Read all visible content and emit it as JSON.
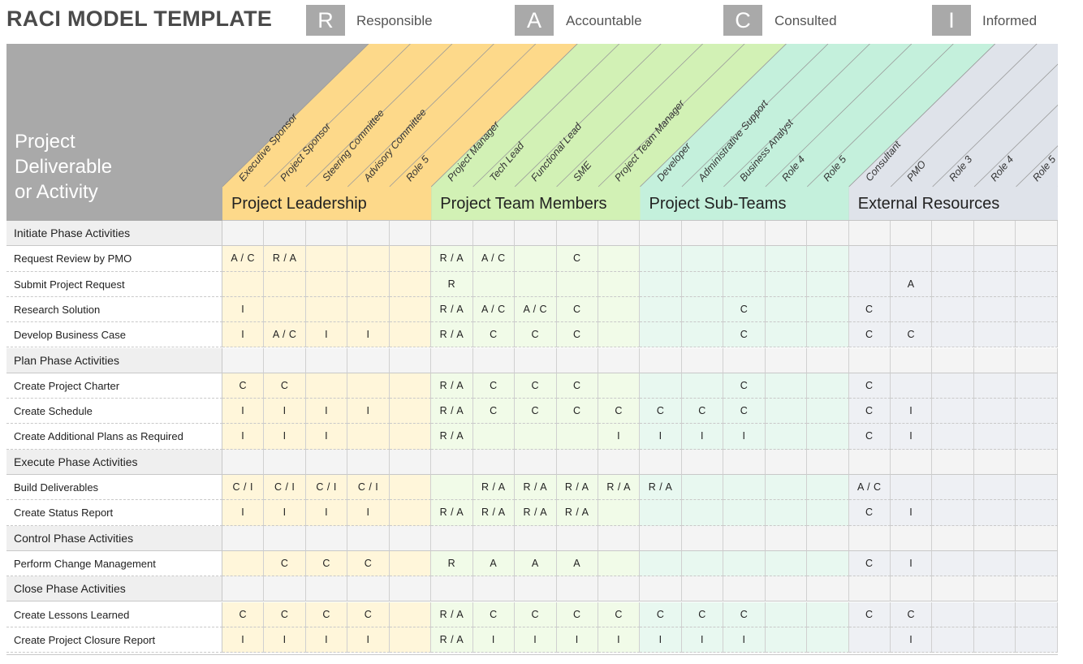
{
  "title": "RACI MODEL TEMPLATE",
  "legend": [
    {
      "letter": "R",
      "label": "Responsible"
    },
    {
      "letter": "A",
      "label": "Accountable"
    },
    {
      "letter": "C",
      "label": "Consulted"
    },
    {
      "letter": "I",
      "label": "Informed"
    }
  ],
  "header": {
    "label_lines": [
      "Project",
      "Deliverable",
      "or Activity"
    ],
    "groups": [
      {
        "name": "Project Leadership",
        "color": "#fdd98a",
        "light": "#fff6da",
        "roles": [
          "Executive Sponsor",
          "Project Sponsor",
          "Steering Committee",
          "Advisory Committee",
          "Role 5"
        ]
      },
      {
        "name": "Project Team Members",
        "color": "#d2f1b5",
        "light": "#f1fbe8",
        "roles": [
          "Project Manager",
          "Tech Lead",
          "Functional Lead",
          "SME",
          "Project Team Manager"
        ]
      },
      {
        "name": "Project Sub-Teams",
        "color": "#c4f0dc",
        "light": "#e8f8f0",
        "roles": [
          "Developer",
          "Administrative Support",
          "Business Analyst",
          "Role 4",
          "Role 5"
        ]
      },
      {
        "name": "External Resources",
        "color": "#dfe3ea",
        "light": "#eef0f4",
        "roles": [
          "Consultant",
          "PMO",
          "Role 3",
          "Role 4",
          "Role 5"
        ]
      }
    ]
  },
  "rows": [
    {
      "type": "phase",
      "label": "Initiate Phase Activities",
      "cells": [
        "",
        "",
        "",
        "",
        "",
        "",
        "",
        "",
        "",
        "",
        "",
        "",
        "",
        "",
        "",
        "",
        "",
        "",
        "",
        ""
      ]
    },
    {
      "type": "activity",
      "label": "Request Review by PMO",
      "cells": [
        "A / C",
        "R / A",
        "",
        "",
        "",
        "R / A",
        "A / C",
        "",
        "C",
        "",
        "",
        "",
        "",
        "",
        "",
        "",
        "",
        "",
        "",
        ""
      ]
    },
    {
      "type": "activity",
      "label": "Submit Project Request",
      "cells": [
        "",
        "",
        "",
        "",
        "",
        "R",
        "",
        "",
        "",
        "",
        "",
        "",
        "",
        "",
        "",
        "",
        "A",
        "",
        "",
        ""
      ]
    },
    {
      "type": "activity",
      "label": "Research Solution",
      "cells": [
        "I",
        "",
        "",
        "",
        "",
        "R / A",
        "A / C",
        "A / C",
        "C",
        "",
        "",
        "",
        "C",
        "",
        "",
        "C",
        "",
        "",
        "",
        ""
      ]
    },
    {
      "type": "activity",
      "label": "Develop Business Case",
      "cells": [
        "I",
        "A / C",
        "I",
        "I",
        "",
        "R / A",
        "C",
        "C",
        "C",
        "",
        "",
        "",
        "C",
        "",
        "",
        "C",
        "C",
        "",
        "",
        ""
      ]
    },
    {
      "type": "phase",
      "label": "Plan Phase Activities",
      "cells": [
        "",
        "",
        "",
        "",
        "",
        "",
        "",
        "",
        "",
        "",
        "",
        "",
        "",
        "",
        "",
        "",
        "",
        "",
        "",
        ""
      ]
    },
    {
      "type": "activity",
      "label": "Create Project Charter",
      "cells": [
        "C",
        "C",
        "",
        "",
        "",
        "R / A",
        "C",
        "C",
        "C",
        "",
        "",
        "",
        "C",
        "",
        "",
        "C",
        "",
        "",
        "",
        ""
      ]
    },
    {
      "type": "activity",
      "label": "Create Schedule",
      "cells": [
        "I",
        "I",
        "I",
        "I",
        "",
        "R / A",
        "C",
        "C",
        "C",
        "C",
        "C",
        "C",
        "C",
        "",
        "",
        "C",
        "I",
        "",
        "",
        ""
      ]
    },
    {
      "type": "activity",
      "label": "Create Additional Plans as Required",
      "cells": [
        "I",
        "I",
        "I",
        "",
        "",
        "R / A",
        "",
        "",
        "",
        "I",
        "I",
        "I",
        "I",
        "",
        "",
        "C",
        "I",
        "",
        "",
        ""
      ]
    },
    {
      "type": "phase",
      "label": "Execute Phase Activities",
      "cells": [
        "",
        "",
        "",
        "",
        "",
        "",
        "",
        "",
        "",
        "",
        "",
        "",
        "",
        "",
        "",
        "",
        "",
        "",
        "",
        ""
      ]
    },
    {
      "type": "activity",
      "label": "Build Deliverables",
      "cells": [
        "C / I",
        "C / I",
        "C / I",
        "C / I",
        "",
        "",
        "R / A",
        "R / A",
        "R / A",
        "R / A",
        "R / A",
        "",
        "",
        "",
        "",
        "A / C",
        "",
        "",
        "",
        ""
      ]
    },
    {
      "type": "activity",
      "label": "Create Status Report",
      "cells": [
        "I",
        "I",
        "I",
        "I",
        "",
        "R / A",
        "R / A",
        "R / A",
        "R / A",
        "",
        "",
        "",
        "",
        "",
        "",
        "C",
        "I",
        "",
        "",
        ""
      ]
    },
    {
      "type": "phase",
      "label": "Control Phase Activities",
      "cells": [
        "",
        "",
        "",
        "",
        "",
        "",
        "",
        "",
        "",
        "",
        "",
        "",
        "",
        "",
        "",
        "",
        "",
        "",
        "",
        ""
      ]
    },
    {
      "type": "activity",
      "label": "Perform Change Management",
      "cells": [
        "",
        "C",
        "C",
        "C",
        "",
        "R",
        "A",
        "A",
        "A",
        "",
        "",
        "",
        "",
        "",
        "",
        "C",
        "I",
        "",
        "",
        ""
      ]
    },
    {
      "type": "phase",
      "label": "Close Phase Activities",
      "cells": [
        "",
        "",
        "",
        "",
        "",
        "",
        "",
        "",
        "",
        "",
        "",
        "",
        "",
        "",
        "",
        "",
        "",
        "",
        "",
        ""
      ]
    },
    {
      "type": "activity",
      "label": "Create Lessons Learned",
      "cells": [
        "C",
        "C",
        "C",
        "C",
        "",
        "R / A",
        "C",
        "C",
        "C",
        "C",
        "C",
        "C",
        "C",
        "",
        "",
        "C",
        "C",
        "",
        "",
        ""
      ]
    },
    {
      "type": "activity",
      "label": "Create Project Closure Report",
      "cells": [
        "I",
        "I",
        "I",
        "I",
        "",
        "R / A",
        "I",
        "I",
        "I",
        "I",
        "I",
        "I",
        "I",
        "",
        "",
        "",
        "I",
        "",
        "",
        ""
      ]
    }
  ]
}
